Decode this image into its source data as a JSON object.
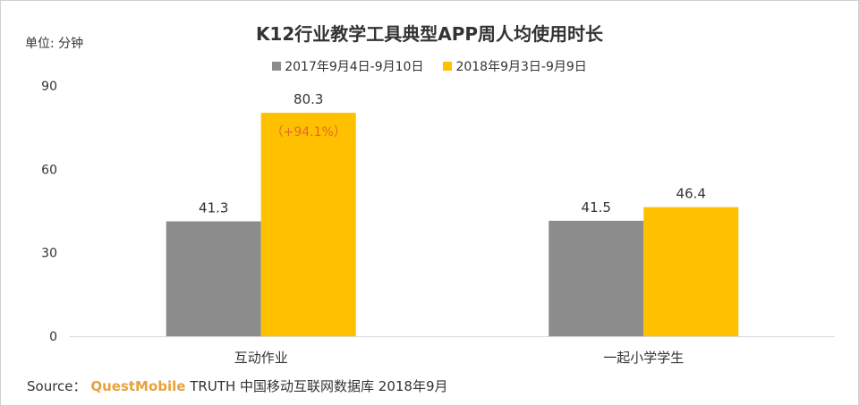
{
  "title": "K12行业教学工具典型APP周人均使用时长",
  "unit_label": "单位: 分钟",
  "source": {
    "prefix": "Source：",
    "brand": "QuestMobile",
    "rest": "TRUTH 中国移动互联网数据库 2018年9月"
  },
  "colors": {
    "series_2017": "#8c8c8c",
    "series_2018": "#ffc000",
    "growth": "#e06a2b"
  },
  "chart_data": {
    "type": "bar",
    "categories": [
      "互动作业",
      "一起小学学生"
    ],
    "series": [
      {
        "name": "2017年9月4日-9月10日",
        "values": [
          41.3,
          41.5
        ],
        "labels": [
          "41.3",
          "41.5"
        ]
      },
      {
        "name": "2018年9月3日-9月9日",
        "values": [
          80.3,
          46.4
        ],
        "labels": [
          "80.3",
          "46.4"
        ]
      }
    ],
    "annotations": [
      {
        "category": "互动作业",
        "text": "（+94.1%）"
      }
    ],
    "yticks": [
      "0",
      "30",
      "60",
      "90"
    ],
    "ylim": [
      0,
      90
    ],
    "legend": "top"
  }
}
